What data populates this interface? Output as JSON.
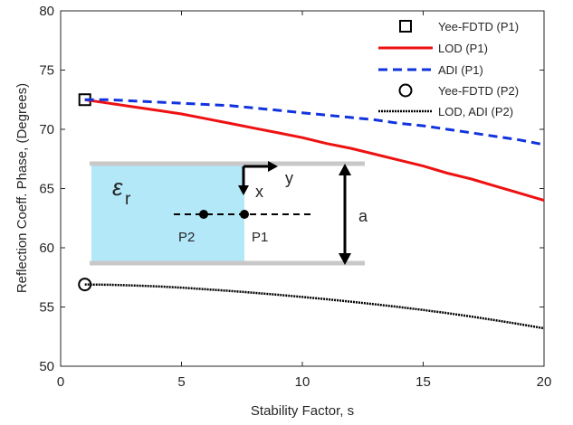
{
  "chart_data": {
    "type": "line",
    "xlabel": "Stability Factor, s",
    "ylabel": "Reflection Coeff. Phase, (Degrees)",
    "xlim": [
      0,
      20
    ],
    "ylim": [
      50,
      80
    ],
    "xticks": [
      0,
      5,
      10,
      15,
      20
    ],
    "yticks": [
      50,
      55,
      60,
      65,
      70,
      75,
      80
    ],
    "grid": false,
    "legend_position": "top-right",
    "series": [
      {
        "name": "Yee-FDTD (P1)",
        "style": "marker-square",
        "color": "#000000",
        "x": [
          1
        ],
        "y": [
          72.5
        ]
      },
      {
        "name": "LOD (P1)",
        "style": "solid",
        "color": "#ee1111",
        "x": [
          1,
          2,
          3,
          4,
          5,
          6,
          7,
          8,
          9,
          10,
          11,
          12,
          13,
          14,
          15,
          16,
          17,
          18,
          19,
          20
        ],
        "y": [
          72.5,
          72.2,
          71.9,
          71.6,
          71.3,
          70.9,
          70.5,
          70.1,
          69.7,
          69.3,
          68.8,
          68.4,
          67.9,
          67.4,
          66.9,
          66.3,
          65.8,
          65.2,
          64.6,
          64.0
        ]
      },
      {
        "name": "ADI (P1)",
        "style": "dashed",
        "color": "#1133dd",
        "x": [
          1,
          2,
          3,
          4,
          5,
          6,
          7,
          8,
          9,
          10,
          11,
          12,
          13,
          14,
          15,
          16,
          17,
          18,
          19,
          20
        ],
        "y": [
          72.5,
          72.5,
          72.4,
          72.3,
          72.2,
          72.1,
          72.0,
          71.8,
          71.6,
          71.4,
          71.2,
          71.0,
          70.8,
          70.5,
          70.3,
          70.0,
          69.7,
          69.4,
          69.1,
          68.7
        ]
      },
      {
        "name": "Yee-FDTD (P2)",
        "style": "marker-circle",
        "color": "#000000",
        "x": [
          1
        ],
        "y": [
          56.9
        ]
      },
      {
        "name": "LOD, ADI (P2)",
        "style": "dotted-thick",
        "color": "#000000",
        "x": [
          1,
          2,
          3,
          4,
          5,
          6,
          7,
          8,
          9,
          10,
          11,
          12,
          13,
          14,
          15,
          16,
          17,
          18,
          19,
          20
        ],
        "y": [
          56.9,
          56.88,
          56.82,
          56.74,
          56.63,
          56.5,
          56.36,
          56.2,
          56.03,
          55.85,
          55.66,
          55.45,
          55.23,
          55.0,
          54.75,
          54.48,
          54.19,
          53.88,
          53.55,
          53.2
        ]
      }
    ],
    "inset": {
      "epsilon_label": "ε",
      "epsilon_subscript": "r",
      "x_axis_label": "x",
      "y_axis_label": "y",
      "height_label": "a",
      "point_labels": [
        "P2",
        "P1"
      ],
      "fill_color": "#b3e8f9",
      "wall_color": "#c8c8c8"
    }
  }
}
